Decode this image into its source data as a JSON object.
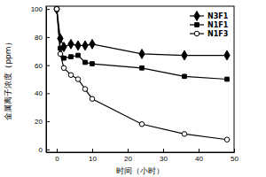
{
  "chart_data": {
    "type": "line",
    "x_label": "时间（小时）",
    "y_label": "金属离子浓度（ppm）",
    "x": [
      0,
      1,
      2,
      4,
      6,
      8,
      10,
      24,
      36,
      48
    ],
    "series": [
      {
        "name": "N3F1",
        "color": "#000000",
        "marker": "diamond",
        "line_style": "solid",
        "values": [
          100,
          79,
          73,
          75,
          74,
          74,
          75,
          68,
          67,
          67
        ]
      },
      {
        "name": "N1F1",
        "color": "#000000",
        "marker": "square",
        "line_style": "solid",
        "values": [
          100,
          72,
          65,
          66,
          67,
          62,
          61,
          58,
          52,
          50
        ]
      },
      {
        "name": "N1F3",
        "color": "#000000",
        "marker": "circle-open",
        "line_style": "solid",
        "values": [
          100,
          68,
          58,
          53,
          50,
          43,
          36,
          18,
          11,
          7
        ]
      }
    ],
    "xlim": [
      -3,
      50
    ],
    "xticks": [
      0,
      10,
      20,
      30,
      40,
      50
    ],
    "ylim": [
      -2,
      102
    ],
    "yticks": [
      0,
      20,
      40,
      60,
      80,
      100
    ],
    "legend": "upper-right",
    "grid": false
  }
}
